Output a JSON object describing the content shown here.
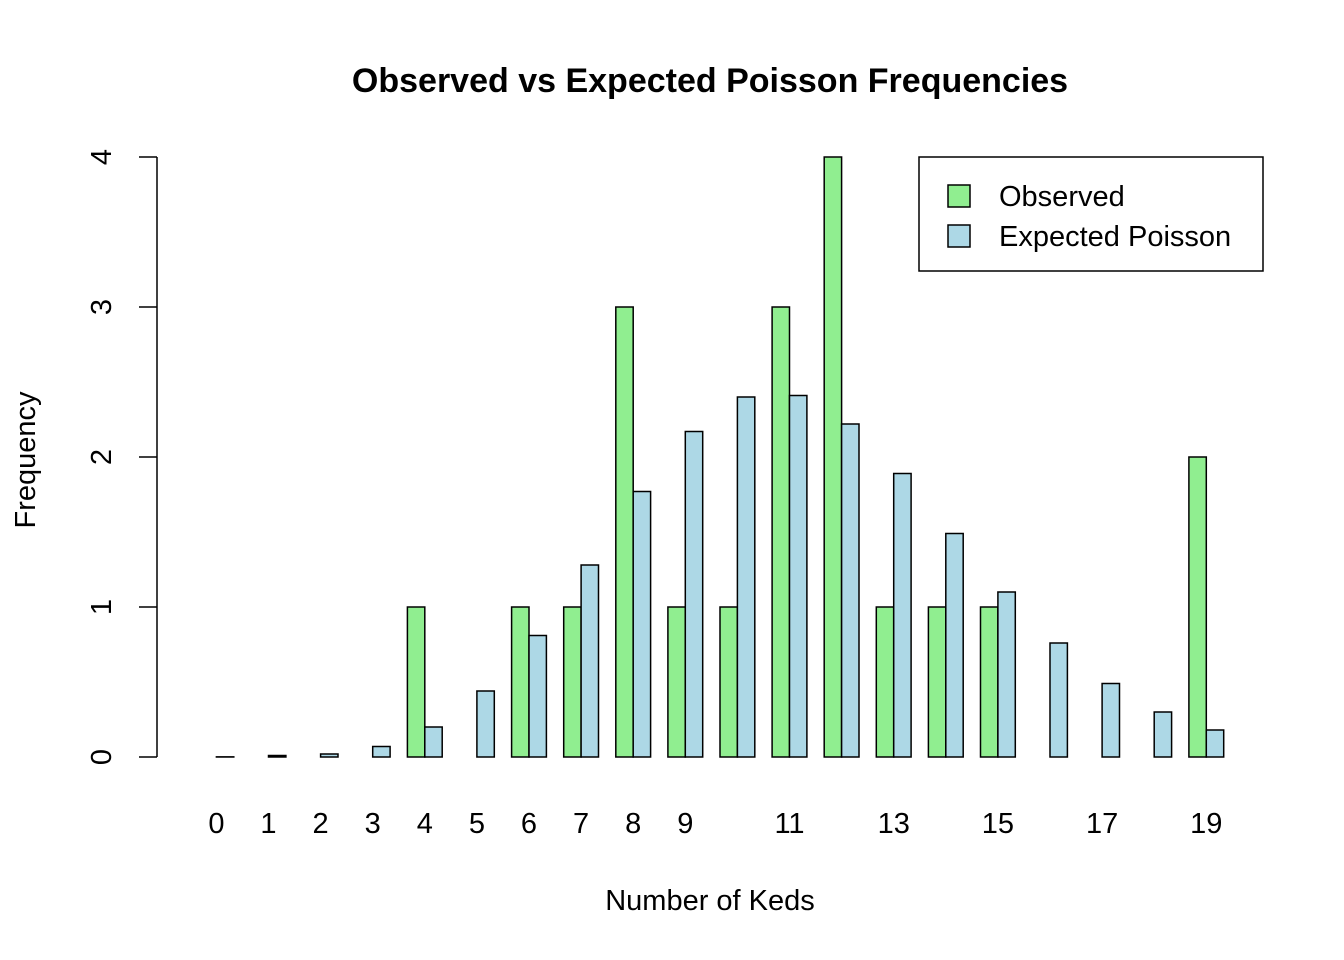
{
  "chart_data": {
    "type": "bar",
    "title": "Observed vs Expected Poisson Frequencies",
    "xlabel": "Number of Keds",
    "ylabel": "Frequency",
    "categories": [
      "0",
      "1",
      "2",
      "3",
      "4",
      "5",
      "6",
      "7",
      "8",
      "9",
      "10",
      "11",
      "12",
      "13",
      "14",
      "15",
      "16",
      "17",
      "18",
      "19"
    ],
    "x_tick_labels_shown": [
      "0",
      "1",
      "2",
      "3",
      "4",
      "5",
      "6",
      "7",
      "8",
      "9",
      "11",
      "13",
      "15",
      "17",
      "19"
    ],
    "ylim": [
      0,
      4
    ],
    "y_ticks": [
      "0",
      "1",
      "2",
      "3",
      "4"
    ],
    "legend": {
      "placement": "top-right",
      "entries": [
        "Observed",
        "Expected Poisson"
      ]
    },
    "grid": false,
    "series": [
      {
        "name": "Observed",
        "color": "#90ee90",
        "values": [
          0,
          0,
          0,
          0,
          1,
          0,
          1,
          1,
          3,
          1,
          1,
          3,
          4,
          1,
          1,
          1,
          0,
          0,
          0,
          2
        ]
      },
      {
        "name": "Expected Poisson",
        "color": "#add8e6",
        "values": [
          0.001,
          0.01,
          0.02,
          0.07,
          0.2,
          0.44,
          0.81,
          1.28,
          1.77,
          2.17,
          2.4,
          2.41,
          2.22,
          1.89,
          1.49,
          1.1,
          0.76,
          0.49,
          0.3,
          0.18
        ]
      }
    ]
  }
}
